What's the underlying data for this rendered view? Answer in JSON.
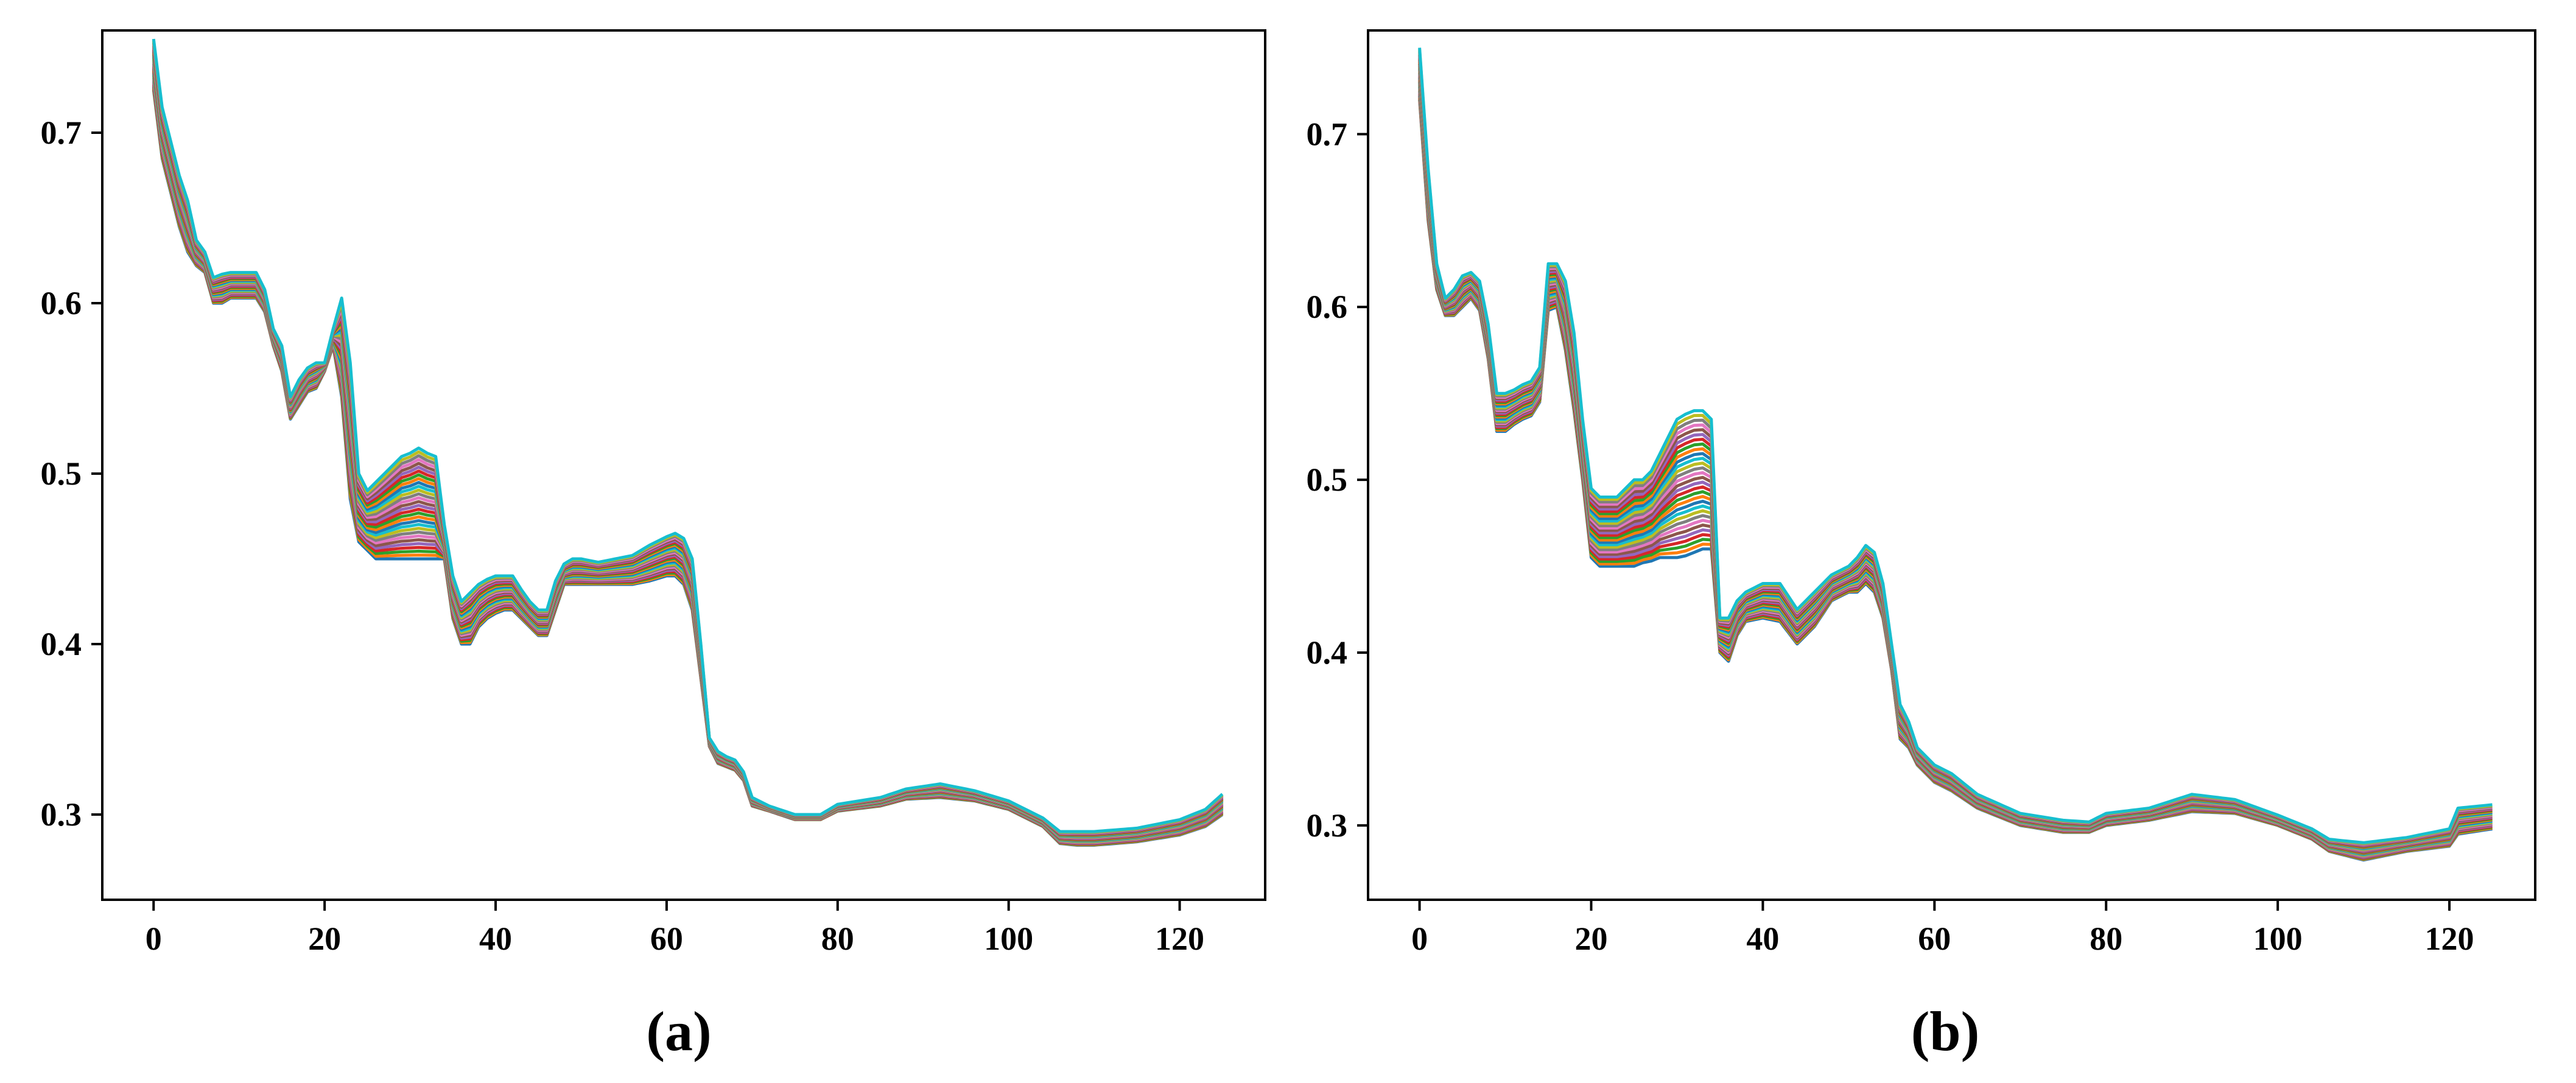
{
  "figure": {
    "panels": [
      {
        "id": "a",
        "label": "(a)"
      },
      {
        "id": "b",
        "label": "(b)"
      }
    ]
  },
  "chart_data": [
    {
      "type": "line",
      "label": "(a)",
      "xlim": [
        -6,
        130
      ],
      "ylim": [
        0.25,
        0.76
      ],
      "xticks": [
        0,
        20,
        40,
        60,
        80,
        100,
        120
      ],
      "yticks": [
        0.3,
        0.4,
        0.5,
        0.6,
        0.7
      ],
      "xtick_labels": [
        "0",
        "20",
        "40",
        "60",
        "80",
        "100",
        "120"
      ],
      "ytick_labels": [
        "0.3",
        "0.4",
        "0.5",
        "0.6",
        "0.7"
      ],
      "grid": false,
      "legend": "none",
      "series_count": 30,
      "colors": [
        "#1f77b4",
        "#ff7f0e",
        "#2ca02c",
        "#d62728",
        "#9467bd",
        "#8c564b",
        "#e377c2",
        "#7f7f7f",
        "#bcbd22",
        "#17becf"
      ],
      "envelope": {
        "x": [
          0,
          1,
          2,
          3,
          4,
          5,
          6,
          7,
          8,
          9,
          10,
          11,
          12,
          13,
          14,
          15,
          16,
          17,
          18,
          19,
          20,
          21,
          22,
          23,
          24,
          25,
          26,
          27,
          28,
          29,
          30,
          31,
          32,
          33,
          34,
          35,
          36,
          37,
          38,
          39,
          40,
          41,
          42,
          43,
          44,
          45,
          46,
          47,
          48,
          49,
          50,
          52,
          54,
          56,
          58,
          60,
          61,
          62,
          63,
          64,
          65,
          66,
          67,
          68,
          69,
          70,
          72,
          75,
          78,
          80,
          85,
          88,
          92,
          96,
          100,
          104,
          106,
          108,
          110,
          115,
          120,
          123,
          125
        ],
        "lo": [
          0.725,
          0.685,
          0.665,
          0.645,
          0.63,
          0.622,
          0.618,
          0.6,
          0.6,
          0.603,
          0.603,
          0.603,
          0.603,
          0.595,
          0.575,
          0.56,
          0.532,
          0.54,
          0.548,
          0.55,
          0.56,
          0.575,
          0.545,
          0.485,
          0.46,
          0.455,
          0.45,
          0.45,
          0.45,
          0.45,
          0.45,
          0.45,
          0.45,
          0.45,
          0.45,
          0.415,
          0.4,
          0.4,
          0.41,
          0.415,
          0.418,
          0.42,
          0.42,
          0.415,
          0.41,
          0.405,
          0.405,
          0.42,
          0.435,
          0.435,
          0.435,
          0.435,
          0.435,
          0.435,
          0.437,
          0.44,
          0.44,
          0.435,
          0.42,
          0.38,
          0.34,
          0.33,
          0.328,
          0.326,
          0.32,
          0.305,
          0.302,
          0.297,
          0.297,
          0.302,
          0.305,
          0.309,
          0.31,
          0.308,
          0.303,
          0.293,
          0.283,
          0.282,
          0.282,
          0.284,
          0.288,
          0.293,
          0.3
        ],
        "hi": [
          0.755,
          0.715,
          0.695,
          0.675,
          0.66,
          0.637,
          0.63,
          0.615,
          0.617,
          0.618,
          0.618,
          0.618,
          0.618,
          0.608,
          0.585,
          0.575,
          0.545,
          0.555,
          0.562,
          0.565,
          0.565,
          0.585,
          0.603,
          0.565,
          0.5,
          0.49,
          0.495,
          0.5,
          0.505,
          0.51,
          0.512,
          0.515,
          0.512,
          0.51,
          0.47,
          0.44,
          0.425,
          0.43,
          0.435,
          0.438,
          0.44,
          0.44,
          0.44,
          0.432,
          0.425,
          0.42,
          0.42,
          0.437,
          0.447,
          0.45,
          0.45,
          0.448,
          0.45,
          0.452,
          0.458,
          0.463,
          0.465,
          0.462,
          0.45,
          0.4,
          0.345,
          0.337,
          0.334,
          0.332,
          0.325,
          0.31,
          0.305,
          0.3,
          0.3,
          0.306,
          0.31,
          0.315,
          0.318,
          0.314,
          0.308,
          0.298,
          0.29,
          0.29,
          0.29,
          0.292,
          0.297,
          0.303,
          0.312
        ]
      }
    },
    {
      "type": "line",
      "label": "(b)",
      "xlim": [
        -6,
        130
      ],
      "ylim": [
        0.257,
        0.76
      ],
      "xticks": [
        0,
        20,
        40,
        60,
        80,
        100,
        120
      ],
      "yticks": [
        0.3,
        0.4,
        0.5,
        0.6,
        0.7
      ],
      "xtick_labels": [
        "0",
        "20",
        "40",
        "60",
        "80",
        "100",
        "120"
      ],
      "ytick_labels": [
        "0.3",
        "0.4",
        "0.5",
        "0.6",
        "0.7"
      ],
      "grid": false,
      "legend": "none",
      "series_count": 30,
      "colors": [
        "#1f77b4",
        "#ff7f0e",
        "#2ca02c",
        "#d62728",
        "#9467bd",
        "#8c564b",
        "#e377c2",
        "#7f7f7f",
        "#bcbd22",
        "#17becf"
      ],
      "envelope": {
        "x": [
          0,
          1,
          2,
          3,
          4,
          5,
          6,
          7,
          8,
          9,
          10,
          11,
          12,
          13,
          14,
          15,
          16,
          17,
          18,
          19,
          20,
          21,
          22,
          23,
          24,
          25,
          26,
          27,
          28,
          29,
          30,
          31,
          32,
          33,
          34,
          35,
          36,
          37,
          38,
          40,
          42,
          44,
          46,
          48,
          50,
          51,
          52,
          53,
          54,
          55,
          56,
          57,
          58,
          60,
          62,
          65,
          70,
          75,
          78,
          80,
          85,
          90,
          95,
          100,
          104,
          106,
          110,
          115,
          120,
          121,
          125
        ],
        "lo": [
          0.72,
          0.65,
          0.61,
          0.595,
          0.595,
          0.6,
          0.605,
          0.598,
          0.57,
          0.528,
          0.528,
          0.532,
          0.535,
          0.537,
          0.545,
          0.598,
          0.6,
          0.575,
          0.54,
          0.5,
          0.455,
          0.45,
          0.45,
          0.45,
          0.45,
          0.45,
          0.452,
          0.453,
          0.455,
          0.455,
          0.455,
          0.456,
          0.458,
          0.46,
          0.46,
          0.4,
          0.395,
          0.41,
          0.418,
          0.42,
          0.418,
          0.405,
          0.415,
          0.43,
          0.435,
          0.435,
          0.44,
          0.435,
          0.42,
          0.39,
          0.35,
          0.345,
          0.335,
          0.325,
          0.32,
          0.31,
          0.3,
          0.296,
          0.296,
          0.3,
          0.303,
          0.308,
          0.307,
          0.3,
          0.292,
          0.285,
          0.28,
          0.285,
          0.288,
          0.295,
          0.298
        ],
        "hi": [
          0.75,
          0.68,
          0.625,
          0.605,
          0.61,
          0.618,
          0.62,
          0.615,
          0.59,
          0.55,
          0.55,
          0.552,
          0.555,
          0.557,
          0.565,
          0.625,
          0.625,
          0.615,
          0.585,
          0.535,
          0.495,
          0.49,
          0.49,
          0.49,
          0.495,
          0.5,
          0.5,
          0.505,
          0.515,
          0.525,
          0.535,
          0.538,
          0.54,
          0.54,
          0.535,
          0.42,
          0.42,
          0.43,
          0.435,
          0.44,
          0.44,
          0.425,
          0.435,
          0.445,
          0.45,
          0.455,
          0.462,
          0.458,
          0.44,
          0.405,
          0.37,
          0.36,
          0.345,
          0.335,
          0.33,
          0.318,
          0.307,
          0.303,
          0.302,
          0.307,
          0.31,
          0.318,
          0.315,
          0.306,
          0.298,
          0.292,
          0.29,
          0.293,
          0.298,
          0.31,
          0.312
        ]
      }
    }
  ]
}
